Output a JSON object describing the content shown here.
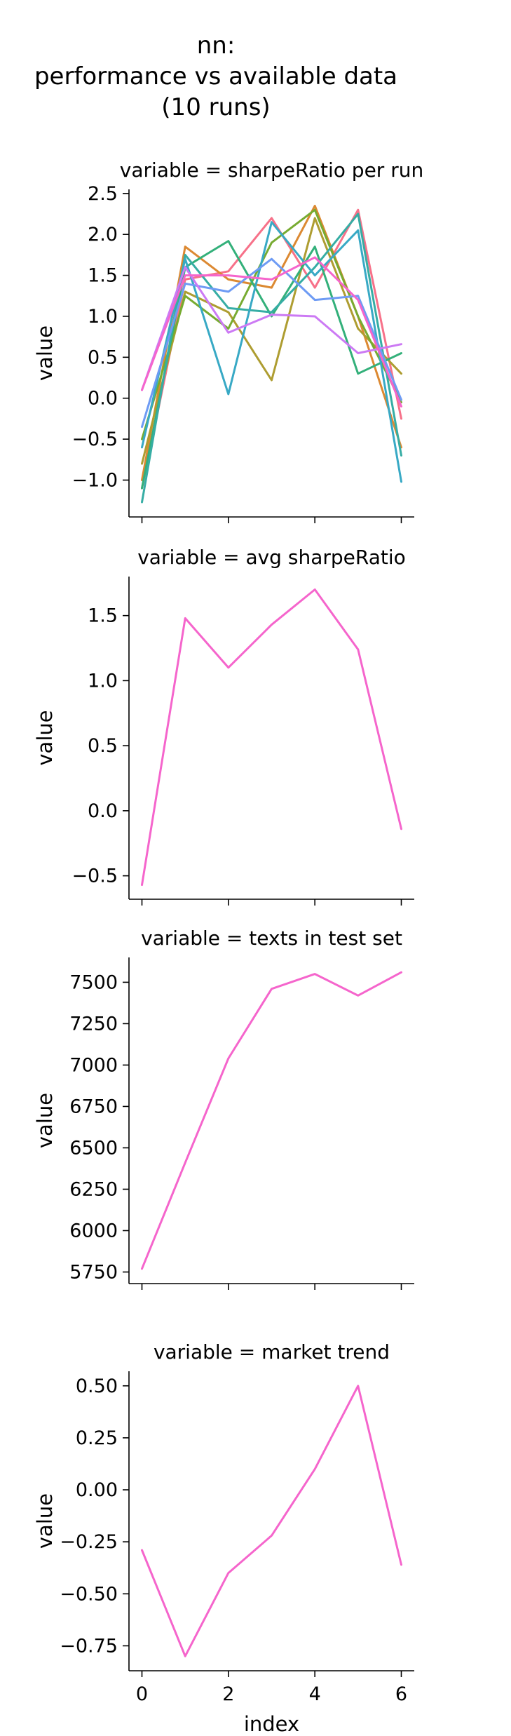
{
  "figure": {
    "title_lines": [
      "nn:",
      "performance vs available data",
      "(10 runs)"
    ]
  },
  "chart_data": [
    {
      "type": "line",
      "title": "variable = sharpeRatio per run",
      "xlabel": "",
      "ylabel": "value",
      "x": [
        0,
        1,
        2,
        3,
        4,
        5,
        6
      ],
      "xlim": [
        -0.3,
        6.3
      ],
      "ylim": [
        -1.45,
        2.55
      ],
      "yticks": [
        -1.0,
        -0.5,
        0.0,
        0.5,
        1.0,
        1.5,
        2.0,
        2.5
      ],
      "ytick_labels": [
        "−1.0",
        "−0.5",
        "0.0",
        "0.5",
        "1.0",
        "1.5",
        "2.0",
        "2.5"
      ],
      "xticks": [
        0,
        2,
        4,
        6
      ],
      "xtick_labels_visible": false,
      "series": [
        {
          "color": "#f77189",
          "values": [
            -1.1,
            1.45,
            1.55,
            2.2,
            1.35,
            2.3,
            -0.25
          ]
        },
        {
          "color": "#dc8932",
          "values": [
            -1.0,
            1.85,
            1.45,
            1.35,
            2.35,
            1.0,
            -0.6
          ]
        },
        {
          "color": "#ae9d31",
          "values": [
            -0.8,
            1.3,
            1.05,
            0.22,
            2.2,
            0.85,
            0.3
          ]
        },
        {
          "color": "#77ab31",
          "values": [
            -0.5,
            1.25,
            0.85,
            1.9,
            2.3,
            1.0,
            -0.05
          ]
        },
        {
          "color": "#33b07a",
          "values": [
            -1.1,
            1.6,
            1.92,
            1.0,
            1.85,
            0.3,
            0.55
          ]
        },
        {
          "color": "#36ada4",
          "values": [
            -1.27,
            1.75,
            1.1,
            1.05,
            1.6,
            2.25,
            -0.7
          ]
        },
        {
          "color": "#38a9c5",
          "values": [
            -0.6,
            1.7,
            0.05,
            2.15,
            1.5,
            2.05,
            -1.02
          ]
        },
        {
          "color": "#6e9bf4",
          "values": [
            -0.35,
            1.4,
            1.3,
            1.7,
            1.2,
            1.25,
            -0.02
          ]
        },
        {
          "color": "#cc7af4",
          "values": [
            0.1,
            1.6,
            0.8,
            1.02,
            1.0,
            0.55,
            0.66
          ]
        },
        {
          "color": "#f565cc",
          "values": [
            0.1,
            1.5,
            1.5,
            1.45,
            1.72,
            1.2,
            -0.1
          ]
        }
      ]
    },
    {
      "type": "line",
      "title": "variable = avg sharpeRatio",
      "xlabel": "",
      "ylabel": "value",
      "x": [
        0,
        1,
        2,
        3,
        4,
        5,
        6
      ],
      "xlim": [
        -0.3,
        6.3
      ],
      "ylim": [
        -0.68,
        1.8
      ],
      "yticks": [
        -0.5,
        0.0,
        0.5,
        1.0,
        1.5
      ],
      "ytick_labels": [
        "−0.5",
        "0.0",
        "0.5",
        "1.0",
        "1.5"
      ],
      "xticks": [
        0,
        2,
        4,
        6
      ],
      "xtick_labels_visible": false,
      "series": [
        {
          "color": "#f565cc",
          "values": [
            -0.57,
            1.48,
            1.1,
            1.43,
            1.7,
            1.24,
            -0.14
          ]
        }
      ]
    },
    {
      "type": "line",
      "title": "variable = texts in test set",
      "xlabel": "",
      "ylabel": "value",
      "x": [
        0,
        1,
        2,
        3,
        4,
        5,
        6
      ],
      "xlim": [
        -0.3,
        6.3
      ],
      "ylim": [
        5680,
        7650
      ],
      "yticks": [
        5750,
        6000,
        6250,
        6500,
        6750,
        7000,
        7250,
        7500
      ],
      "ytick_labels": [
        "5750",
        "6000",
        "6250",
        "6500",
        "6750",
        "7000",
        "7250",
        "7500"
      ],
      "xticks": [
        0,
        2,
        4,
        6
      ],
      "xtick_labels_visible": false,
      "series": [
        {
          "color": "#f565cc",
          "values": [
            5770,
            6410,
            7040,
            7460,
            7550,
            7420,
            7560
          ]
        }
      ]
    },
    {
      "type": "line",
      "title": "variable = market trend",
      "xlabel": "index",
      "ylabel": "value",
      "x": [
        0,
        1,
        2,
        3,
        4,
        5,
        6
      ],
      "xlim": [
        -0.3,
        6.3
      ],
      "ylim": [
        -0.87,
        0.57
      ],
      "yticks": [
        -0.75,
        -0.5,
        -0.25,
        0.0,
        0.25,
        0.5
      ],
      "ytick_labels": [
        "−0.75",
        "−0.50",
        "−0.25",
        "0.00",
        "0.25",
        "0.50"
      ],
      "xticks": [
        0,
        2,
        4,
        6
      ],
      "xtick_labels": [
        "0",
        "2",
        "4",
        "6"
      ],
      "xtick_labels_visible": true,
      "series": [
        {
          "color": "#f565cc",
          "values": [
            -0.29,
            -0.8,
            -0.4,
            -0.22,
            0.1,
            0.5,
            -0.36
          ]
        }
      ]
    }
  ]
}
